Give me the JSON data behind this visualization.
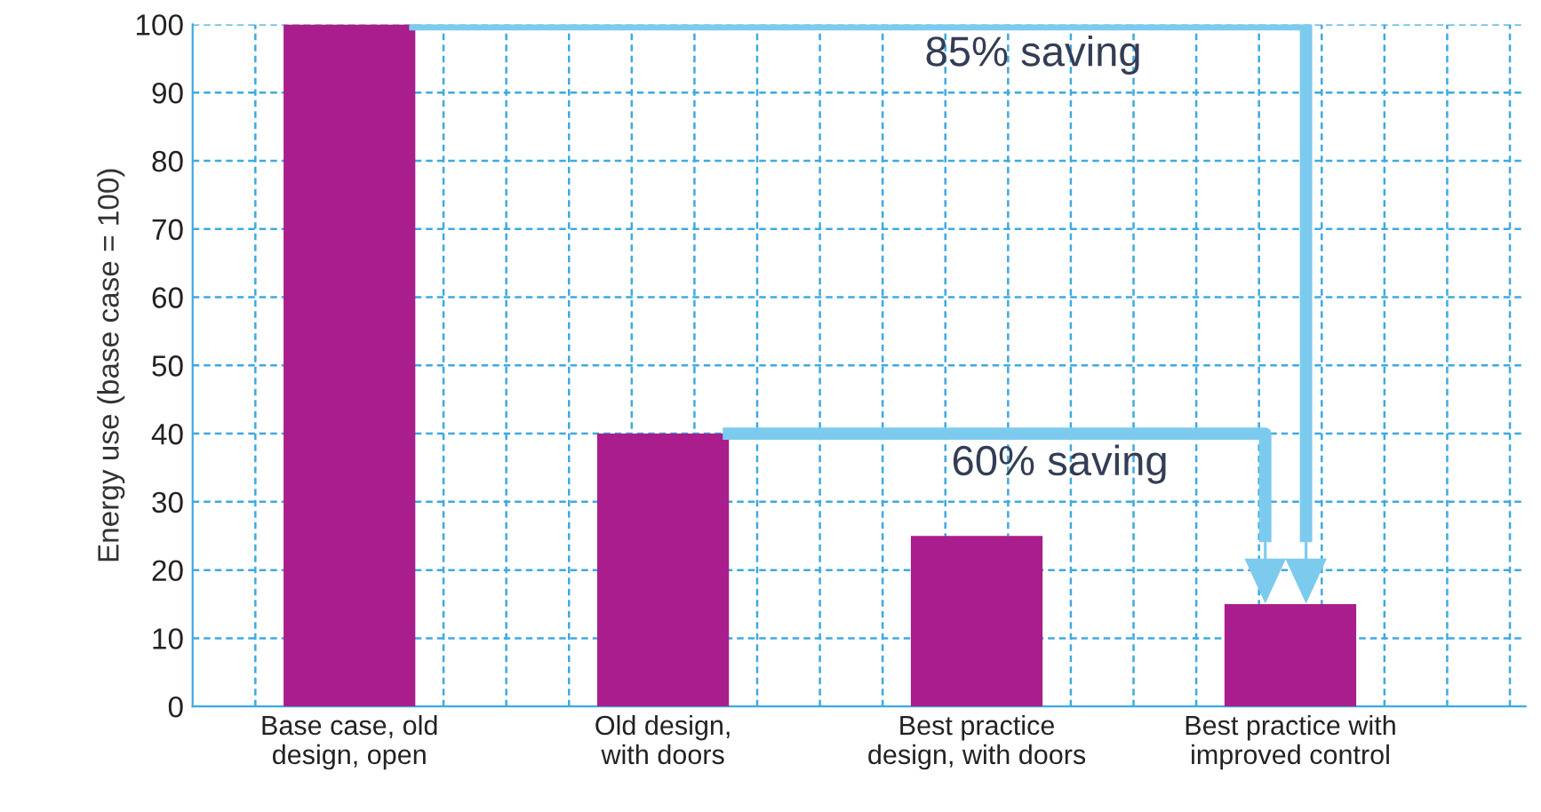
{
  "chart_data": {
    "type": "bar",
    "ylabel": "Energy use (base case = 100)",
    "categories": [
      "Base case, old\ndesign, open",
      "Old design,\nwith doors",
      "Best practice\ndesign, with doors",
      "Best practice with\nimproved control"
    ],
    "values": [
      100,
      40,
      25,
      15
    ],
    "color": "#a91e8c",
    "ylim": [
      0,
      100
    ],
    "yticks": [
      0,
      10,
      20,
      30,
      40,
      50,
      60,
      70,
      80,
      90,
      100
    ],
    "grid": true,
    "annotations": [
      "85% saving",
      "60% saving"
    ]
  }
}
